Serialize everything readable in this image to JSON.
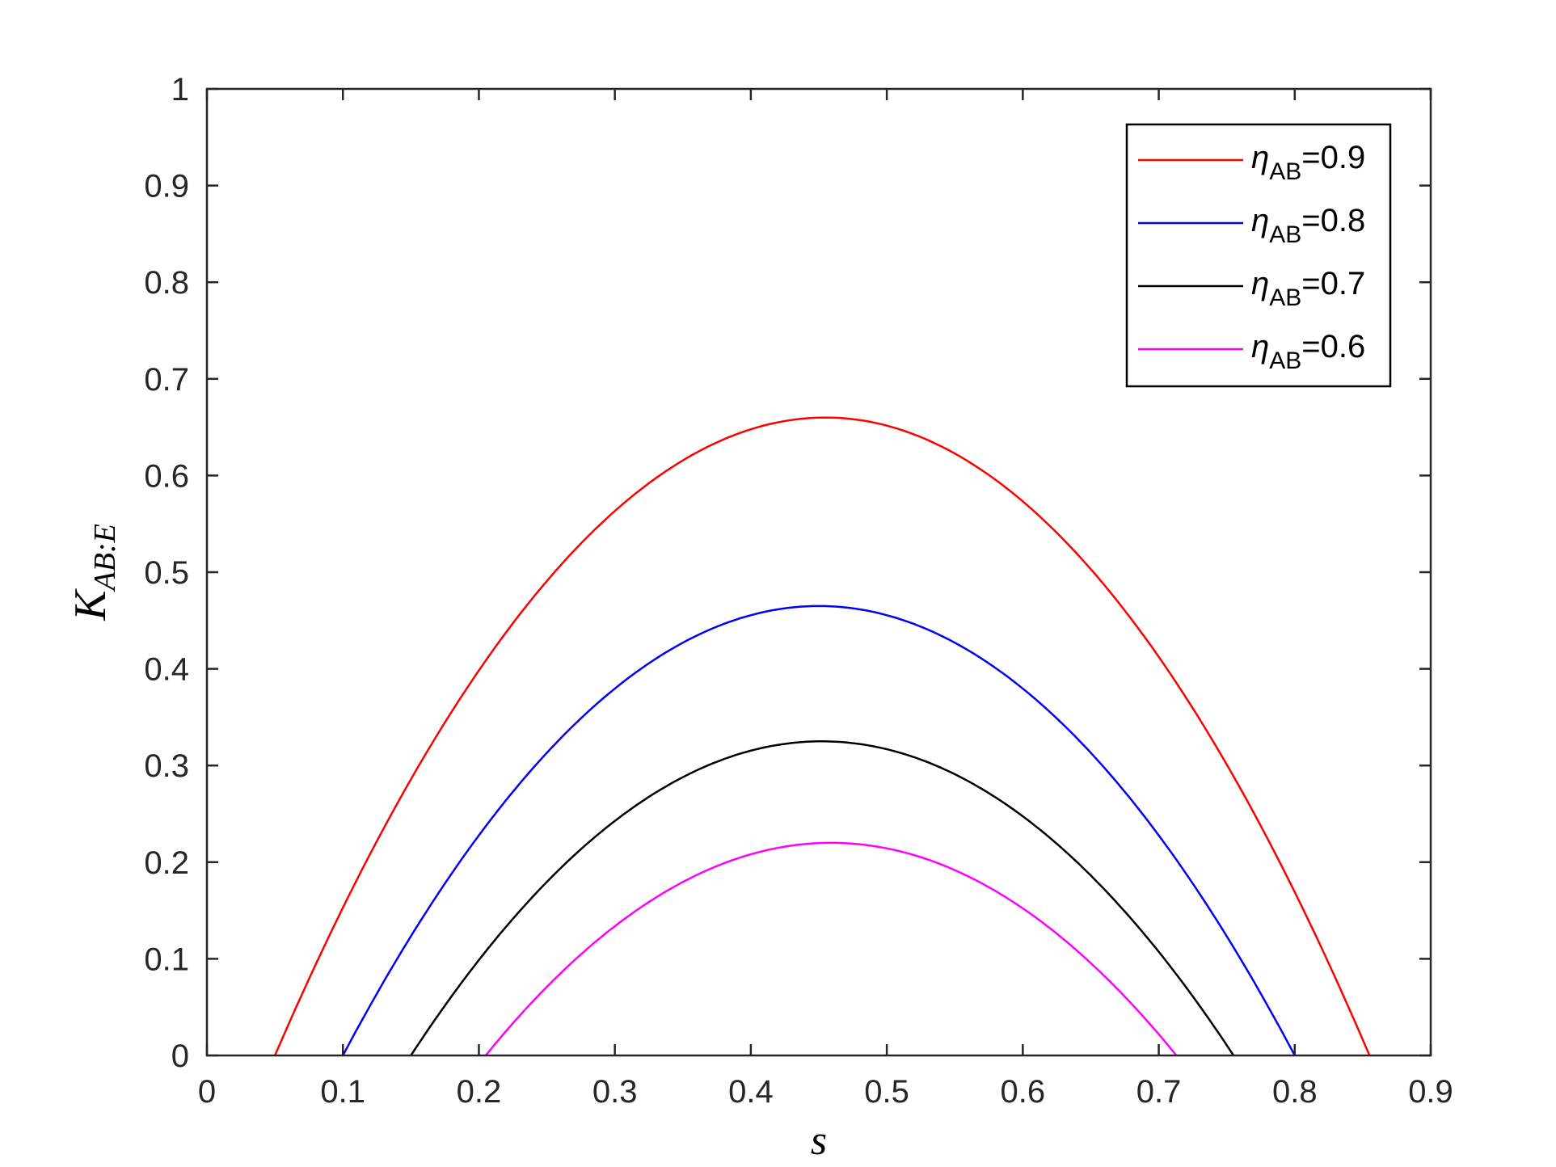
{
  "chart_data": {
    "type": "line",
    "title": "",
    "xlabel": "s",
    "ylabel": {
      "main": "K",
      "sub": "AB:E"
    },
    "xlim": [
      0,
      0.9
    ],
    "ylim": [
      0,
      1
    ],
    "xticks": [
      "0",
      "0.1",
      "0.2",
      "0.3",
      "0.4",
      "0.5",
      "0.6",
      "0.7",
      "0.8",
      "0.9"
    ],
    "yticks": [
      "0",
      "0.1",
      "0.2",
      "0.3",
      "0.4",
      "0.5",
      "0.6",
      "0.7",
      "0.8",
      "0.9",
      "1"
    ],
    "grid": false,
    "legend_position": "top-right",
    "series": [
      {
        "name": "η_AB=0.9",
        "label_main": "η",
        "label_sub": "AB",
        "label_tail": "=0.9",
        "color": "#ff0000",
        "x_start": 0.05,
        "x_end": 0.855,
        "peak_x": 0.455,
        "peak_y": 0.66
      },
      {
        "name": "η_AB=0.8",
        "label_main": "η",
        "label_sub": "AB",
        "label_tail": "=0.8",
        "color": "#0000ff",
        "x_start": 0.1,
        "x_end": 0.8,
        "peak_x": 0.45,
        "peak_y": 0.465
      },
      {
        "name": "η_AB=0.7",
        "label_main": "η",
        "label_sub": "AB",
        "label_tail": "=0.7",
        "color": "#000000",
        "x_start": 0.15,
        "x_end": 0.755,
        "peak_x": 0.452,
        "peak_y": 0.325
      },
      {
        "name": "η_AB=0.6",
        "label_main": "η",
        "label_sub": "AB",
        "label_tail": "=0.6",
        "color": "#ff00ff",
        "x_start": 0.205,
        "x_end": 0.713,
        "peak_x": 0.459,
        "peak_y": 0.22
      }
    ]
  }
}
